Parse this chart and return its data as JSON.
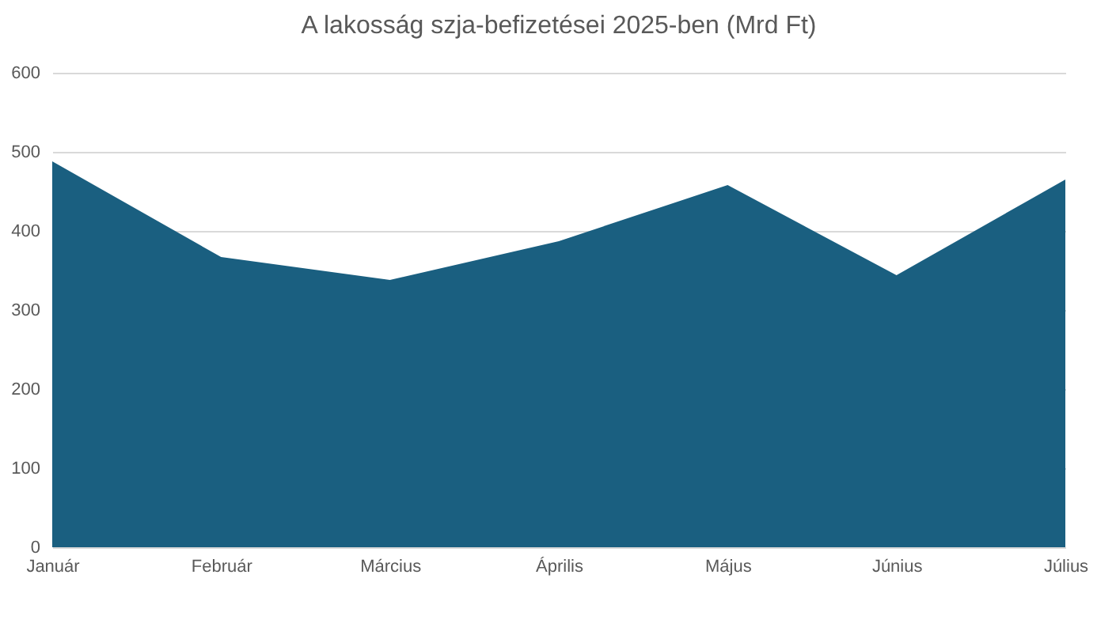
{
  "chart_data": {
    "type": "area",
    "title": "A lakosság szja-befizetései 2025-ben (Mrd Ft)",
    "categories": [
      "Január",
      "Február",
      "Március",
      "Április",
      "Május",
      "Június",
      "Július"
    ],
    "series": [
      {
        "color": "#1a5f80",
        "values": [
          488,
          367,
          338,
          387,
          458,
          344,
          465
        ]
      }
    ],
    "ylim": [
      0,
      600
    ],
    "yticks": [
      0,
      100,
      200,
      300,
      400,
      500,
      600
    ],
    "grid": "y"
  }
}
